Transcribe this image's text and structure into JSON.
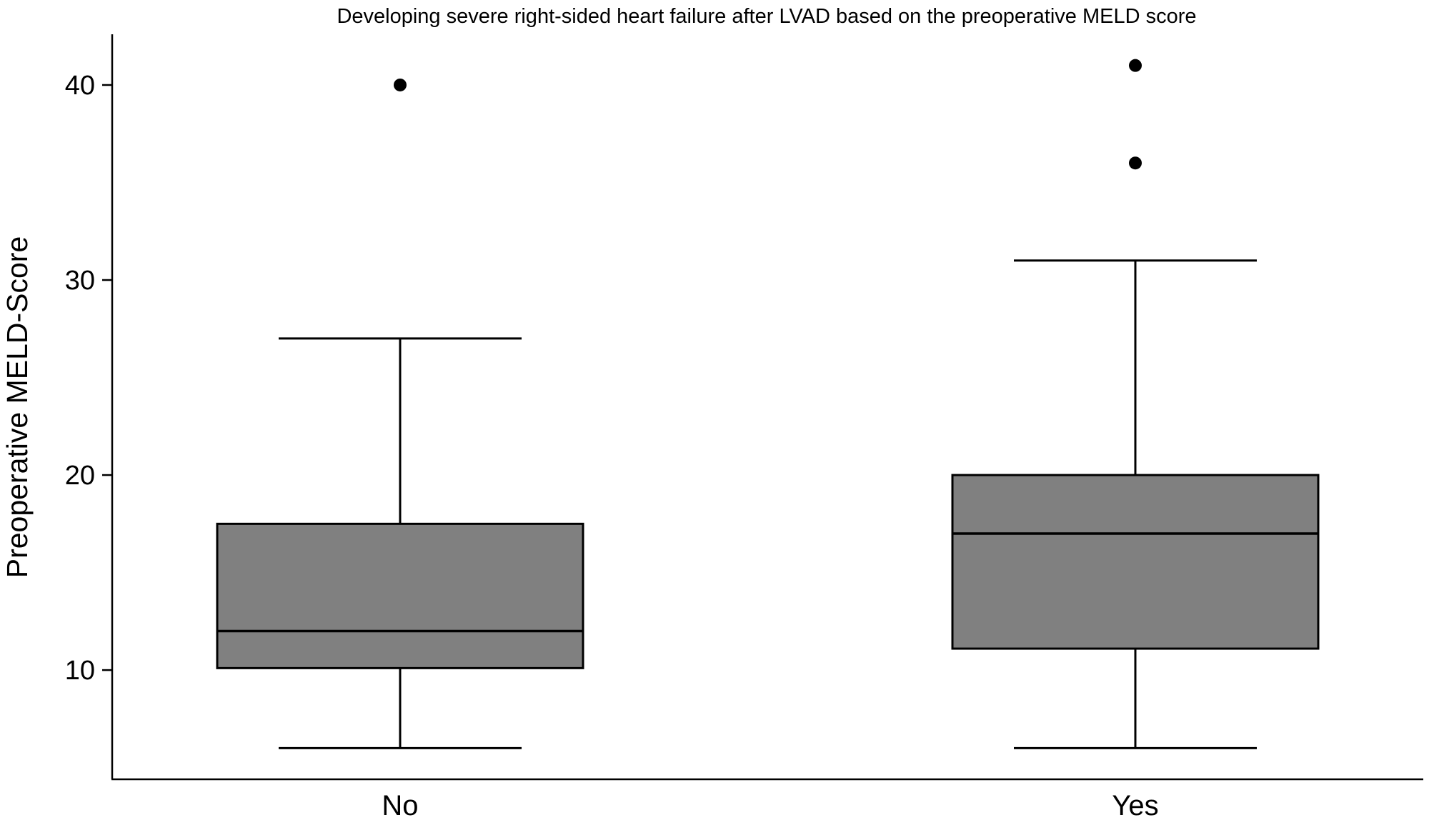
{
  "chart_data": {
    "type": "box",
    "title": "Developing severe right-sided heart failure after LVAD based on the preoperative MELD score",
    "xlabel": "",
    "ylabel": "Preoperative MELD-Score",
    "ylim": [
      4.4,
      42.6
    ],
    "yticks": [
      10,
      20,
      30,
      40
    ],
    "grid": false,
    "legend": "none",
    "box_color": "#808080",
    "line_color": "#000000",
    "categories": [
      "No",
      "Yes"
    ],
    "series": [
      {
        "category": "No",
        "whisker_low": 6,
        "q1": 10.1,
        "median": 12,
        "q3": 17.5,
        "whisker_high": 27,
        "outliers": [
          40
        ]
      },
      {
        "category": "Yes",
        "whisker_low": 6,
        "q1": 11.1,
        "median": 17,
        "q3": 20,
        "whisker_high": 31,
        "outliers": [
          41,
          36
        ]
      }
    ]
  }
}
